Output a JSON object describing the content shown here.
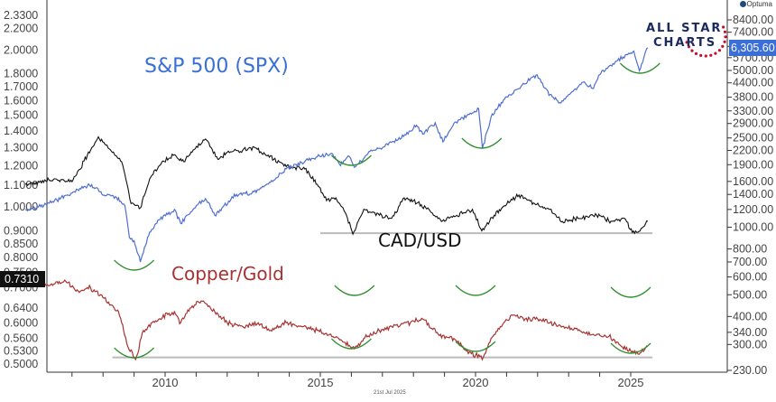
{
  "vendor": {
    "label": "Optuma"
  },
  "logo": {
    "line1": "ALL STAR",
    "line2": "CHARTS"
  },
  "footer": {
    "date": "21st Jul 2025"
  },
  "colors": {
    "spx": "#4f6fd0",
    "cad": "#111111",
    "cg": "#a83232",
    "support": "#bbbbbb",
    "smile": "#2f8f2f",
    "spx_tag": "#3a6fd8",
    "cg_tag": "#111111"
  },
  "chart_data": {
    "type": "line",
    "x_ticks": [
      "2010",
      "2015",
      "2020",
      "2025"
    ],
    "left_axis": {
      "scale": "log",
      "ticks": [
        "2.3300",
        "2.2000",
        "2.0000",
        "1.8000",
        "1.7000",
        "1.6000",
        "1.5000",
        "1.4000",
        "1.3000",
        "1.2000",
        "1.1000",
        "1.0000",
        "0.9000",
        "0.8500",
        "0.8000",
        "0.7500",
        "0.7000",
        "0.6400",
        "0.6000",
        "0.5600",
        "0.5300",
        "0.5000"
      ]
    },
    "right_axis": {
      "scale": "log",
      "ticks": [
        "8400.00",
        "7400.00",
        "6400.00",
        "5700.00",
        "5000.00",
        "4400.00",
        "3800.00",
        "3300.00",
        "2900.00",
        "2500.00",
        "2200.00",
        "1900.00",
        "1600.00",
        "1400.00",
        "1200.00",
        "1000.00",
        "800.00",
        "700.00",
        "600.00",
        "500.00",
        "400.00",
        "340.00",
        "300.00",
        "230.00"
      ]
    },
    "series": [
      {
        "name": "S&P 500 (SPX)",
        "label": "S&P 500 (SPX)",
        "last_value_tag": "6,305.60",
        "points": [
          [
            2005.5,
            1200
          ],
          [
            2006.2,
            1270
          ],
          [
            2007.0,
            1420
          ],
          [
            2007.5,
            1530
          ],
          [
            2007.8,
            1500
          ],
          [
            2008.0,
            1390
          ],
          [
            2008.4,
            1370
          ],
          [
            2008.7,
            1250
          ],
          [
            2008.85,
            900
          ],
          [
            2009.0,
            870
          ],
          [
            2009.2,
            700
          ],
          [
            2009.5,
            950
          ],
          [
            2009.8,
            1080
          ],
          [
            2010.3,
            1200
          ],
          [
            2010.5,
            1040
          ],
          [
            2010.9,
            1200
          ],
          [
            2011.3,
            1340
          ],
          [
            2011.6,
            1130
          ],
          [
            2011.9,
            1250
          ],
          [
            2012.3,
            1400
          ],
          [
            2012.8,
            1420
          ],
          [
            2013.0,
            1470
          ],
          [
            2013.5,
            1620
          ],
          [
            2013.9,
            1820
          ],
          [
            2014.5,
            1960
          ],
          [
            2014.9,
            2060
          ],
          [
            2015.4,
            2120
          ],
          [
            2015.65,
            1880
          ],
          [
            2015.9,
            2080
          ],
          [
            2016.1,
            1850
          ],
          [
            2016.6,
            2180
          ],
          [
            2016.9,
            2250
          ],
          [
            2017.5,
            2450
          ],
          [
            2017.9,
            2680
          ],
          [
            2018.1,
            2850
          ],
          [
            2018.3,
            2600
          ],
          [
            2018.7,
            2920
          ],
          [
            2018.95,
            2400
          ],
          [
            2019.3,
            2900
          ],
          [
            2019.9,
            3230
          ],
          [
            2020.1,
            3380
          ],
          [
            2020.22,
            2240
          ],
          [
            2020.5,
            3100
          ],
          [
            2020.9,
            3700
          ],
          [
            2021.5,
            4300
          ],
          [
            2021.95,
            4770
          ],
          [
            2022.4,
            3900
          ],
          [
            2022.75,
            3580
          ],
          [
            2023.0,
            3900
          ],
          [
            2023.5,
            4450
          ],
          [
            2023.8,
            4150
          ],
          [
            2024.0,
            4780
          ],
          [
            2024.5,
            5460
          ],
          [
            2024.9,
            5880
          ],
          [
            2025.1,
            6100
          ],
          [
            2025.28,
            4980
          ],
          [
            2025.45,
            5900
          ],
          [
            2025.55,
            6305.6
          ]
        ]
      },
      {
        "name": "CAD/USD",
        "label": "CAD/USD",
        "points": [
          [
            2005.5,
            0.86
          ],
          [
            2006.5,
            0.88
          ],
          [
            2007.0,
            0.87
          ],
          [
            2007.6,
            1.0
          ],
          [
            2007.85,
            1.06
          ],
          [
            2008.3,
            0.99
          ],
          [
            2008.6,
            0.95
          ],
          [
            2008.9,
            0.79
          ],
          [
            2009.2,
            0.775
          ],
          [
            2009.5,
            0.88
          ],
          [
            2009.9,
            0.95
          ],
          [
            2010.3,
            0.98
          ],
          [
            2010.6,
            0.95
          ],
          [
            2010.9,
            1.0
          ],
          [
            2011.3,
            1.05
          ],
          [
            2011.7,
            0.96
          ],
          [
            2012.0,
            0.99
          ],
          [
            2012.5,
            1.0
          ],
          [
            2012.9,
            1.01
          ],
          [
            2013.5,
            0.96
          ],
          [
            2013.9,
            0.93
          ],
          [
            2014.5,
            0.92
          ],
          [
            2014.9,
            0.86
          ],
          [
            2015.2,
            0.8
          ],
          [
            2015.5,
            0.81
          ],
          [
            2015.8,
            0.76
          ],
          [
            2016.05,
            0.69
          ],
          [
            2016.4,
            0.77
          ],
          [
            2016.9,
            0.75
          ],
          [
            2017.3,
            0.74
          ],
          [
            2017.7,
            0.81
          ],
          [
            2018.0,
            0.8
          ],
          [
            2018.5,
            0.77
          ],
          [
            2018.9,
            0.73
          ],
          [
            2019.4,
            0.75
          ],
          [
            2019.9,
            0.77
          ],
          [
            2020.2,
            0.7
          ],
          [
            2020.6,
            0.75
          ],
          [
            2020.9,
            0.78
          ],
          [
            2021.4,
            0.82
          ],
          [
            2021.9,
            0.79
          ],
          [
            2022.4,
            0.77
          ],
          [
            2022.8,
            0.73
          ],
          [
            2023.3,
            0.74
          ],
          [
            2023.9,
            0.75
          ],
          [
            2024.4,
            0.73
          ],
          [
            2024.8,
            0.74
          ],
          [
            2025.05,
            0.695
          ],
          [
            2025.3,
            0.7
          ],
          [
            2025.55,
            0.73
          ]
        ]
      },
      {
        "name": "Copper/Gold",
        "label": "Copper/Gold",
        "points": [
          [
            2005.5,
            0.75
          ],
          [
            2006.2,
            0.71
          ],
          [
            2006.8,
            0.72
          ],
          [
            2007.2,
            0.69
          ],
          [
            2007.6,
            0.7
          ],
          [
            2008.0,
            0.67
          ],
          [
            2008.5,
            0.63
          ],
          [
            2008.8,
            0.54
          ],
          [
            2009.05,
            0.51
          ],
          [
            2009.3,
            0.58
          ],
          [
            2009.8,
            0.61
          ],
          [
            2010.3,
            0.63
          ],
          [
            2010.5,
            0.6
          ],
          [
            2010.8,
            0.64
          ],
          [
            2011.2,
            0.66
          ],
          [
            2011.6,
            0.63
          ],
          [
            2012.0,
            0.6
          ],
          [
            2012.5,
            0.59
          ],
          [
            2013.0,
            0.6
          ],
          [
            2013.4,
            0.58
          ],
          [
            2013.9,
            0.6
          ],
          [
            2014.4,
            0.59
          ],
          [
            2014.9,
            0.58
          ],
          [
            2015.3,
            0.57
          ],
          [
            2015.8,
            0.55
          ],
          [
            2016.1,
            0.535
          ],
          [
            2016.4,
            0.56
          ],
          [
            2016.9,
            0.58
          ],
          [
            2017.3,
            0.59
          ],
          [
            2017.9,
            0.6
          ],
          [
            2018.3,
            0.61
          ],
          [
            2018.8,
            0.57
          ],
          [
            2019.3,
            0.56
          ],
          [
            2019.7,
            0.53
          ],
          [
            2020.0,
            0.52
          ],
          [
            2020.25,
            0.515
          ],
          [
            2020.5,
            0.56
          ],
          [
            2020.8,
            0.59
          ],
          [
            2021.2,
            0.62
          ],
          [
            2021.6,
            0.61
          ],
          [
            2022.0,
            0.61
          ],
          [
            2022.4,
            0.6
          ],
          [
            2022.8,
            0.59
          ],
          [
            2023.3,
            0.58
          ],
          [
            2023.8,
            0.57
          ],
          [
            2024.3,
            0.565
          ],
          [
            2024.7,
            0.54
          ],
          [
            2025.0,
            0.53
          ],
          [
            2025.3,
            0.525
          ],
          [
            2025.55,
            0.54
          ]
        ]
      }
    ],
    "annotations": {
      "support_lines": [
        {
          "series": "CAD/USD",
          "value": 0.693,
          "from": 2015.0,
          "to": 2025.7
        },
        {
          "series": "Copper/Gold",
          "value": 0.515,
          "from": 2008.3,
          "to": 2025.7
        }
      ],
      "smiles": [
        {
          "series": "SPX",
          "at": 2016.0
        },
        {
          "series": "SPX",
          "at": 2020.2
        },
        {
          "series": "SPX",
          "at": 2025.3
        },
        {
          "series": "CAD/USD",
          "at": 2009.0
        },
        {
          "series": "CAD/USD",
          "at": 2016.1
        },
        {
          "series": "CAD/USD",
          "at": 2020.0
        },
        {
          "series": "CAD/USD",
          "at": 2025.0
        },
        {
          "series": "Copper/Gold",
          "at": 2009.0
        },
        {
          "series": "Copper/Gold",
          "at": 2016.0
        },
        {
          "series": "Copper/Gold",
          "at": 2020.0
        },
        {
          "series": "Copper/Gold",
          "at": 2025.0
        }
      ]
    },
    "last_value_tags": {
      "left": "0.7310",
      "right": "6,305.60"
    },
    "grid": false
  }
}
